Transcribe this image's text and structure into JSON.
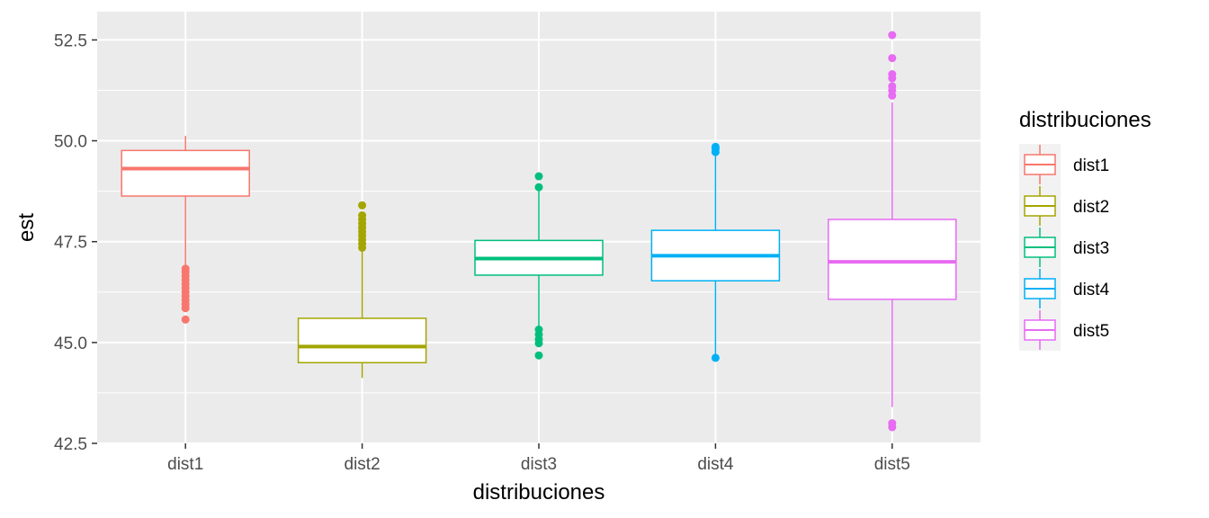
{
  "chart_data": {
    "type": "boxplot",
    "xlabel": "distribuciones",
    "ylabel": "est",
    "ylim": [
      42.5,
      53.2
    ],
    "yticks": [
      "42.5",
      "45.0",
      "47.5",
      "50.0",
      "52.5"
    ],
    "ytick_values": [
      42.5,
      45.0,
      47.5,
      50.0,
      52.5
    ],
    "categories": [
      "dist1",
      "dist2",
      "dist3",
      "dist4",
      "dist5"
    ],
    "grid": true,
    "legend": {
      "title": "distribuciones",
      "position": "right",
      "entries": [
        "dist1",
        "dist2",
        "dist3",
        "dist4",
        "dist5"
      ]
    },
    "series": [
      {
        "name": "dist1",
        "color": "#F8766D",
        "q1": 48.63,
        "median": 49.31,
        "q3": 49.76,
        "whisker_low": 46.9,
        "whisker_high": 50.12,
        "outliers": [
          46.83,
          46.75,
          46.65,
          46.55,
          46.45,
          46.35,
          46.25,
          46.15,
          46.05,
          45.95,
          45.85,
          45.57
        ]
      },
      {
        "name": "dist2",
        "color": "#A3A500",
        "q1": 44.5,
        "median": 44.9,
        "q3": 45.6,
        "whisker_low": 44.12,
        "whisker_high": 47.3,
        "outliers": [
          47.35,
          47.45,
          47.55,
          47.65,
          47.75,
          47.85,
          47.95,
          48.05,
          48.15,
          48.4
        ]
      },
      {
        "name": "dist3",
        "color": "#00BF7D",
        "q1": 46.67,
        "median": 47.08,
        "q3": 47.53,
        "whisker_low": 45.4,
        "whisker_high": 48.75,
        "outliers": [
          45.32,
          45.2,
          45.08,
          44.98,
          44.68,
          48.85,
          49.12
        ]
      },
      {
        "name": "dist4",
        "color": "#00B0F6",
        "q1": 46.53,
        "median": 47.15,
        "q3": 47.78,
        "whisker_low": 44.62,
        "whisker_high": 49.65,
        "outliers": [
          49.72,
          49.8,
          49.85,
          44.62
        ]
      },
      {
        "name": "dist5",
        "color": "#E76BF3",
        "q1": 46.07,
        "median": 47.0,
        "q3": 48.05,
        "whisker_low": 43.4,
        "whisker_high": 50.95,
        "outliers": [
          51.12,
          51.25,
          51.35,
          51.55,
          51.65,
          52.05,
          52.62,
          43.0,
          42.9
        ]
      }
    ]
  }
}
